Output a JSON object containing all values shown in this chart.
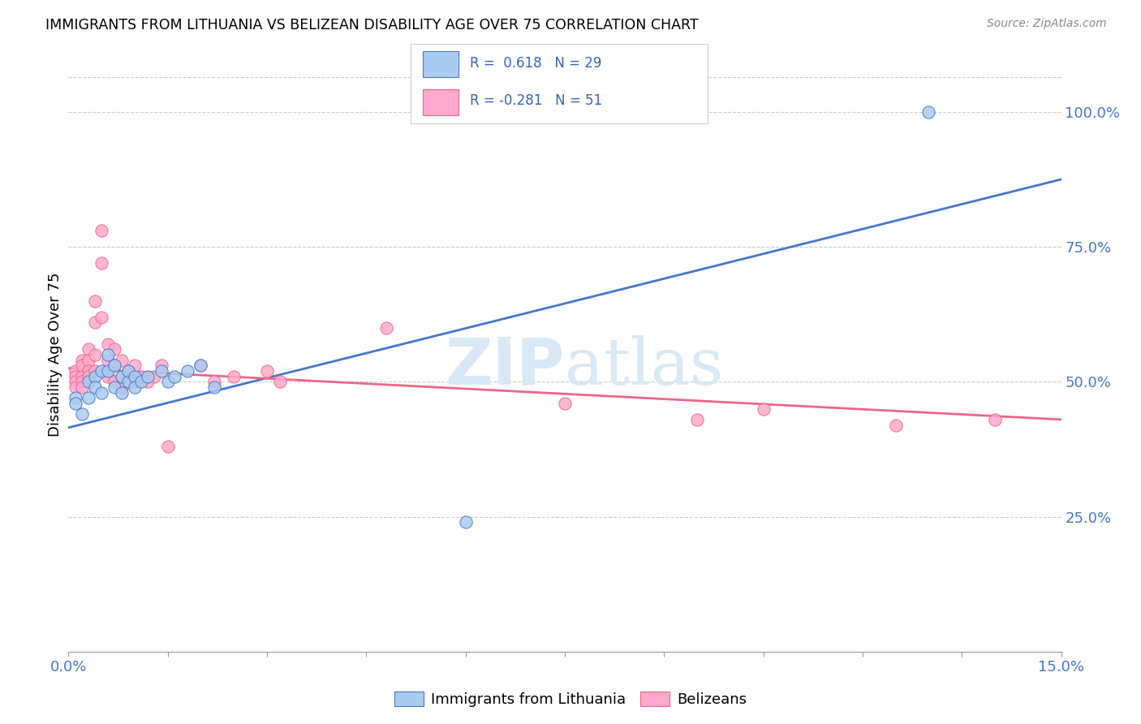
{
  "title": "IMMIGRANTS FROM LITHUANIA VS BELIZEAN DISABILITY AGE OVER 75 CORRELATION CHART",
  "source": "Source: ZipAtlas.com",
  "ylabel": "Disability Age Over 75",
  "xlim": [
    0.0,
    0.15
  ],
  "ylim": [
    0.0,
    1.1
  ],
  "blue_color": "#AACCEE",
  "pink_color": "#FFAACC",
  "blue_line_color": "#4477CC",
  "pink_line_color": "#EE6688",
  "blue_scatter": [
    [
      0.001,
      0.47
    ],
    [
      0.001,
      0.46
    ],
    [
      0.002,
      0.44
    ],
    [
      0.003,
      0.5
    ],
    [
      0.003,
      0.47
    ],
    [
      0.004,
      0.51
    ],
    [
      0.004,
      0.49
    ],
    [
      0.005,
      0.48
    ],
    [
      0.005,
      0.52
    ],
    [
      0.006,
      0.52
    ],
    [
      0.006,
      0.55
    ],
    [
      0.007,
      0.53
    ],
    [
      0.007,
      0.49
    ],
    [
      0.008,
      0.51
    ],
    [
      0.008,
      0.48
    ],
    [
      0.009,
      0.5
    ],
    [
      0.009,
      0.52
    ],
    [
      0.01,
      0.51
    ],
    [
      0.01,
      0.49
    ],
    [
      0.011,
      0.5
    ],
    [
      0.012,
      0.51
    ],
    [
      0.014,
      0.52
    ],
    [
      0.015,
      0.5
    ],
    [
      0.016,
      0.51
    ],
    [
      0.018,
      0.52
    ],
    [
      0.02,
      0.53
    ],
    [
      0.022,
      0.49
    ],
    [
      0.06,
      0.24
    ],
    [
      0.13,
      1.0
    ]
  ],
  "pink_scatter": [
    [
      0.001,
      0.52
    ],
    [
      0.001,
      0.51
    ],
    [
      0.001,
      0.5
    ],
    [
      0.001,
      0.49
    ],
    [
      0.002,
      0.54
    ],
    [
      0.002,
      0.53
    ],
    [
      0.002,
      0.51
    ],
    [
      0.002,
      0.5
    ],
    [
      0.002,
      0.49
    ],
    [
      0.003,
      0.56
    ],
    [
      0.003,
      0.54
    ],
    [
      0.003,
      0.52
    ],
    [
      0.003,
      0.51
    ],
    [
      0.004,
      0.65
    ],
    [
      0.004,
      0.61
    ],
    [
      0.004,
      0.55
    ],
    [
      0.004,
      0.52
    ],
    [
      0.005,
      0.78
    ],
    [
      0.005,
      0.72
    ],
    [
      0.005,
      0.62
    ],
    [
      0.006,
      0.57
    ],
    [
      0.006,
      0.54
    ],
    [
      0.006,
      0.51
    ],
    [
      0.007,
      0.56
    ],
    [
      0.007,
      0.53
    ],
    [
      0.007,
      0.5
    ],
    [
      0.008,
      0.54
    ],
    [
      0.008,
      0.51
    ],
    [
      0.008,
      0.49
    ],
    [
      0.009,
      0.52
    ],
    [
      0.009,
      0.5
    ],
    [
      0.01,
      0.53
    ],
    [
      0.01,
      0.5
    ],
    [
      0.011,
      0.51
    ],
    [
      0.012,
      0.5
    ],
    [
      0.013,
      0.51
    ],
    [
      0.014,
      0.53
    ],
    [
      0.015,
      0.38
    ],
    [
      0.02,
      0.53
    ],
    [
      0.022,
      0.5
    ],
    [
      0.025,
      0.51
    ],
    [
      0.03,
      0.52
    ],
    [
      0.032,
      0.5
    ],
    [
      0.048,
      0.6
    ],
    [
      0.075,
      0.46
    ],
    [
      0.095,
      0.43
    ],
    [
      0.105,
      0.45
    ],
    [
      0.125,
      0.42
    ],
    [
      0.14,
      0.43
    ]
  ],
  "watermark_zip": "ZIP",
  "watermark_atlas": "atlas",
  "legend_label_blue": "Immigrants from Lithuania",
  "legend_label_pink": "Belizeans"
}
